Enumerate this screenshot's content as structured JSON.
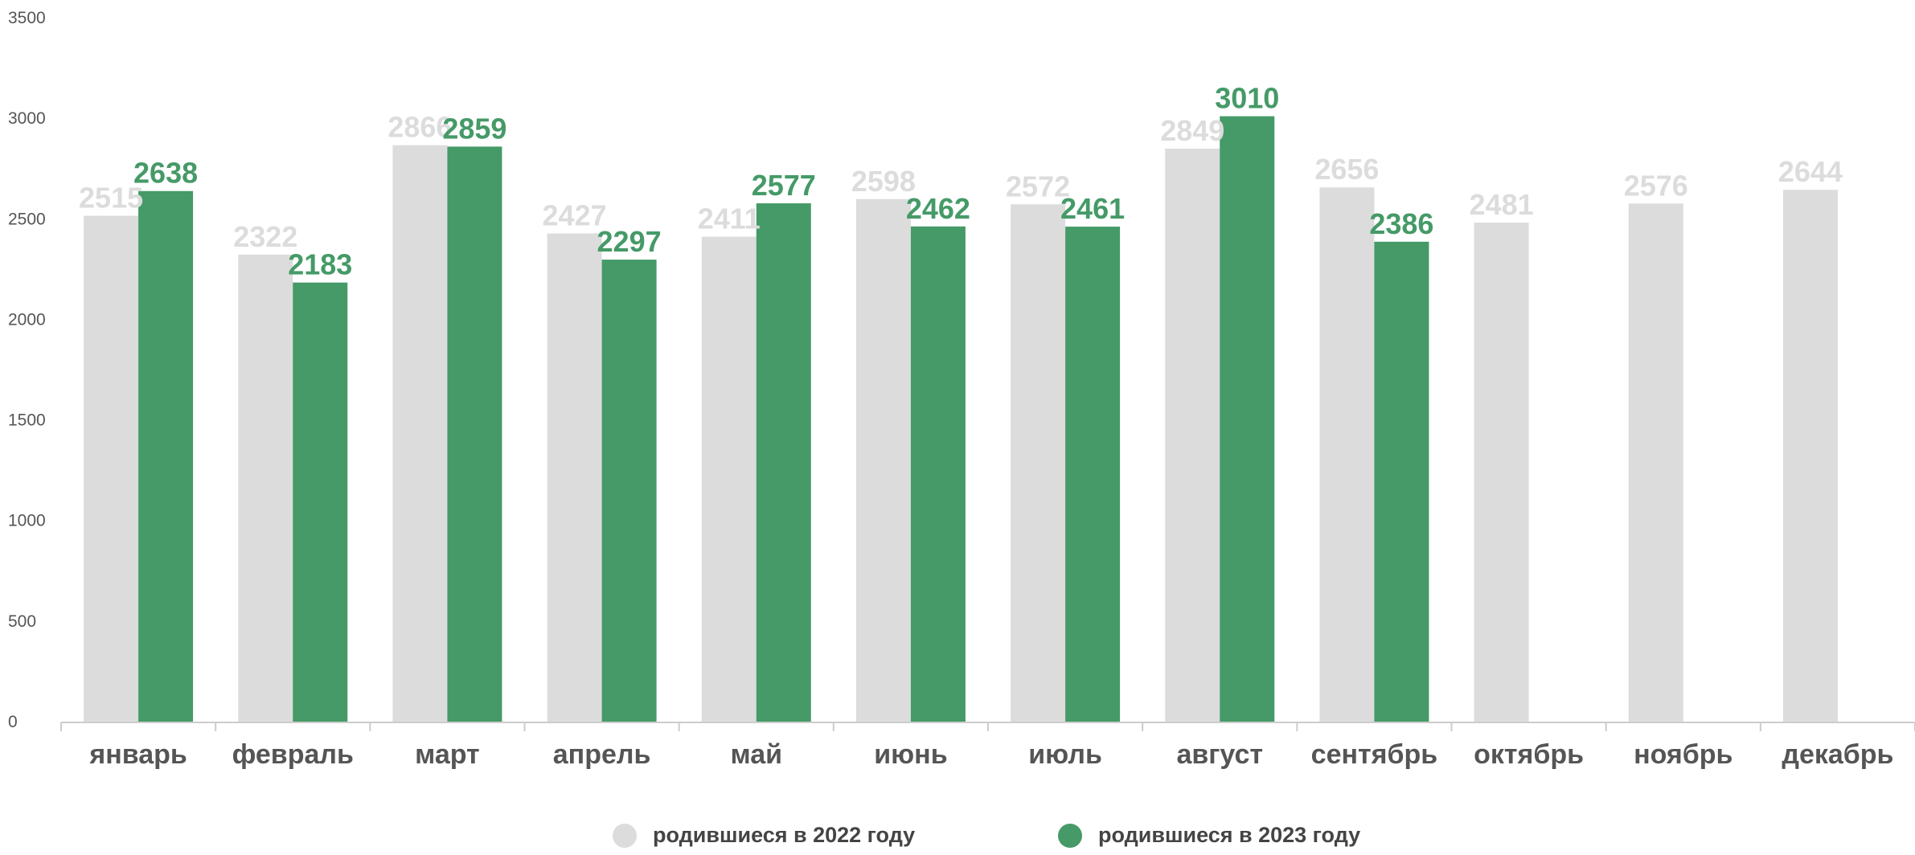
{
  "colors": {
    "series_2022": "#dcdcdc",
    "series_2023": "#459a67",
    "label_2022": "#dcdcdc",
    "label_2023": "#459a67",
    "axis": "#cccccc",
    "tick_text": "#555555"
  },
  "chart_data": {
    "type": "bar",
    "categories": [
      "январь",
      "февраль",
      "март",
      "апрель",
      "май",
      "июнь",
      "июль",
      "август",
      "сентябрь",
      "октябрь",
      "ноябрь",
      "декабрь"
    ],
    "series": [
      {
        "name": "родившиеся в 2022 году",
        "values": [
          2515,
          2322,
          2866,
          2427,
          2411,
          2598,
          2572,
          2849,
          2656,
          2481,
          2576,
          2644
        ]
      },
      {
        "name": "родившиеся в 2023 году",
        "values": [
          2638,
          2183,
          2859,
          2297,
          2577,
          2462,
          2461,
          3010,
          2386,
          null,
          null,
          null
        ]
      }
    ],
    "ylim": [
      0,
      3500
    ],
    "yticks": [
      0,
      500,
      1000,
      1500,
      2000,
      2500,
      3000,
      3500
    ],
    "grid": false,
    "legend_position": "bottom-center",
    "data_labels": true
  }
}
